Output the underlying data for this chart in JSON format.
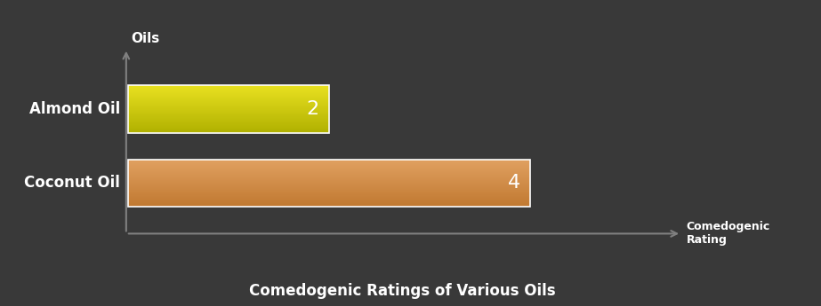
{
  "categories": [
    "Coconut Oil",
    "Almond Oil"
  ],
  "values": [
    4,
    2
  ],
  "almond_color_top": "#e8e020",
  "almond_color_bottom": "#b0b000",
  "coconut_color_top": "#e0a060",
  "coconut_color_bottom": "#c07830",
  "background_color": "#393939",
  "text_color": "#ffffff",
  "title": "Comedogenic Ratings of Various Oils",
  "xlabel": "Comedogenic\nRating",
  "ylabel": "Oils",
  "xlim": [
    0,
    5.5
  ],
  "title_fontsize": 12,
  "label_fontsize": 11,
  "tick_fontsize": 12,
  "bar_label_fontsize": 16
}
